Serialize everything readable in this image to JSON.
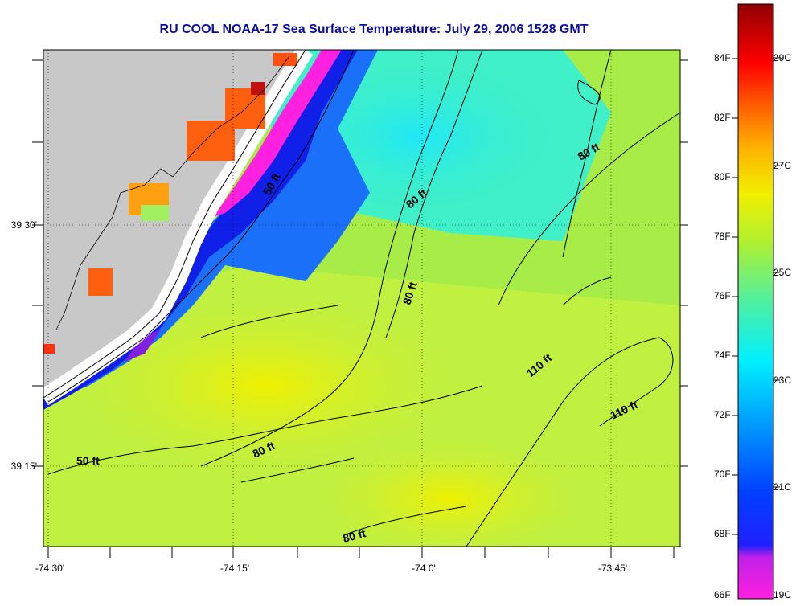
{
  "title": "RU COOL  NOAA-17  Sea Surface Temperature:  July 29, 2006 1528 GMT",
  "map": {
    "lon_labels": [
      "-74 30'",
      "-74 15'",
      "-74 0'",
      "-73 45'"
    ],
    "lat_labels": [
      "39 30'",
      "39 15'"
    ],
    "depth_labels": [
      "50 ft",
      "80 ft",
      "80 ft",
      "80 ft",
      "80 ft",
      "110 ft",
      "110 ft",
      "50 ft",
      "80 ft"
    ],
    "colors": {
      "land": "#c8c8c8",
      "ocean_yellow": "#d8f030",
      "ocean_green": "#90e850",
      "ocean_cyan": "#30e0f0",
      "ocean_blue": "#1060f0",
      "coastal_blue": "#1010e0",
      "magenta": "#ff20e0",
      "hot": "#ff6010"
    }
  },
  "colorbar": {
    "f_labels": [
      "84F",
      "82F",
      "80F",
      "78F",
      "76F",
      "74F",
      "72F",
      "70F",
      "68F",
      "66F"
    ],
    "c_labels": [
      "29C",
      "27C",
      "25C",
      "23C",
      "21C",
      "19C"
    ],
    "stops": [
      "#ff20e0",
      "#8020e0",
      "#0000ff",
      "#0090ff",
      "#00f0ff",
      "#40f0a0",
      "#a0f040",
      "#f0f000",
      "#ffa000",
      "#ff2000",
      "#900000"
    ]
  }
}
